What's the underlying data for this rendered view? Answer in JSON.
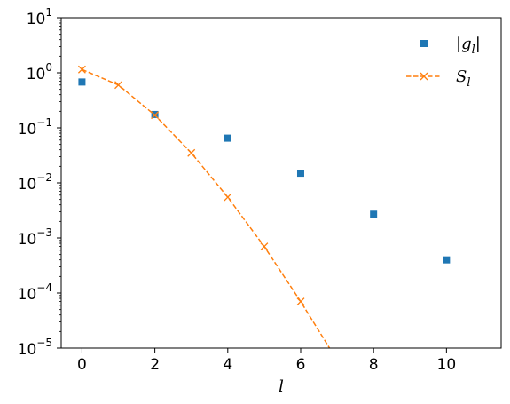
{
  "chart_data": {
    "type": "scatter",
    "xlabel": "l",
    "ylabel": "",
    "xlim": [
      -0.57,
      11.5
    ],
    "ylim_log10": [
      -5,
      1
    ],
    "xticks": [
      0,
      2,
      4,
      6,
      8,
      10
    ],
    "xtick_labels": [
      "0",
      "2",
      "4",
      "6",
      "8",
      "10"
    ],
    "yticks_exp": [
      1,
      0,
      -1,
      -2,
      -3,
      -4,
      -5
    ],
    "ytick_labels": [
      {
        "base": "10",
        "exp": "1"
      },
      {
        "base": "10",
        "exp": "0"
      },
      {
        "base": "10",
        "exp": "−1"
      },
      {
        "base": "10",
        "exp": "−2"
      },
      {
        "base": "10",
        "exp": "−3"
      },
      {
        "base": "10",
        "exp": "−4"
      },
      {
        "base": "10",
        "exp": "−5"
      }
    ],
    "y_scale": "log",
    "grid": false,
    "legend_position": "top-right",
    "series": [
      {
        "name": "|g_l|",
        "legend_label": {
          "pre": "|g",
          "sub": "l",
          "post": "|"
        },
        "style": "markers",
        "marker": "square",
        "color": "#1f77b4",
        "x": [
          0,
          2,
          4,
          6,
          8,
          10
        ],
        "y": [
          0.68,
          0.175,
          0.065,
          0.015,
          0.0027,
          0.0004
        ]
      },
      {
        "name": "S_l",
        "legend_label": {
          "pre": "S",
          "sub": "l",
          "post": ""
        },
        "style": "dashed-line-with-markers",
        "marker": "x",
        "color": "#ff7f0e",
        "x": [
          0,
          1,
          2,
          3,
          4,
          5,
          6,
          7
        ],
        "y": [
          1.15,
          0.6,
          0.17,
          0.035,
          0.0055,
          0.0007,
          7e-05,
          6e-06
        ]
      }
    ]
  }
}
